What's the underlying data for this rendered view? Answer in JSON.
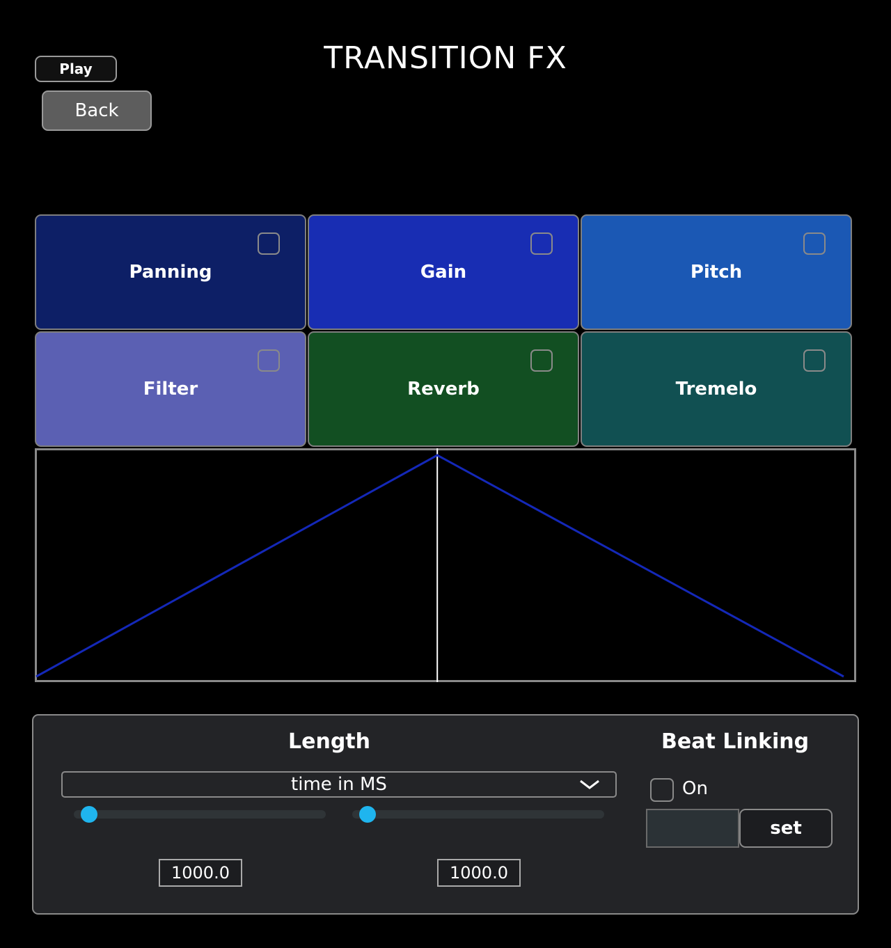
{
  "header": {
    "title": "TRANSITION FX"
  },
  "toolbar": {
    "play_label": "Play",
    "back_label": "Back"
  },
  "effects": [
    {
      "label": "Panning",
      "color": "#0d1f66",
      "checked": false
    },
    {
      "label": "Gain",
      "color": "#182db3",
      "checked": false
    },
    {
      "label": "Pitch",
      "color": "#1b58b4",
      "checked": false
    },
    {
      "label": "Filter",
      "color": "#5b60b3",
      "checked": false
    },
    {
      "label": "Reverb",
      "color": "#124f22",
      "checked": false
    },
    {
      "label": "Tremelo",
      "color": "#115052",
      "checked": false
    }
  ],
  "envelope": {
    "line_color": "#1428b8",
    "peak_position": 0.49,
    "start_level": 0.0,
    "peak_level": 1.0,
    "end_level": 0.0
  },
  "length": {
    "label": "Length",
    "mode_selected": "time in MS",
    "slider_left": {
      "value": "1000.0",
      "fraction": 0.06
    },
    "slider_right": {
      "value": "1000.0",
      "fraction": 0.06
    }
  },
  "beat_linking": {
    "label": "Beat Linking",
    "on_label": "On",
    "on_checked": false,
    "input_value": "",
    "set_label": "set"
  },
  "colors": {
    "slider_thumb": "#1fb5ee"
  }
}
